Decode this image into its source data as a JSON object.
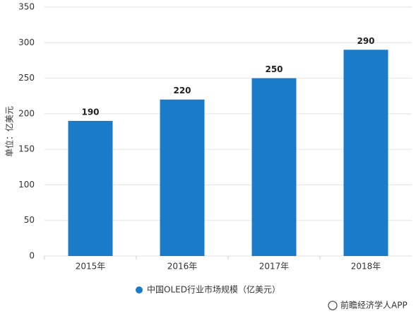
{
  "chart_data": {
    "type": "bar",
    "y_axis_label": "单位：亿美元",
    "categories": [
      "2015年",
      "2016年",
      "2017年",
      "2018年"
    ],
    "series": [
      {
        "name": "中国OLED行业市场规模（亿美元）",
        "color": "#1a7bc9",
        "values": [
          190,
          220,
          250,
          290
        ]
      }
    ],
    "ylim": [
      0,
      350
    ],
    "yticks": [
      0,
      50,
      100,
      150,
      200,
      250,
      300,
      350
    ],
    "grid": true,
    "source": "前瞻经济学人APP"
  }
}
